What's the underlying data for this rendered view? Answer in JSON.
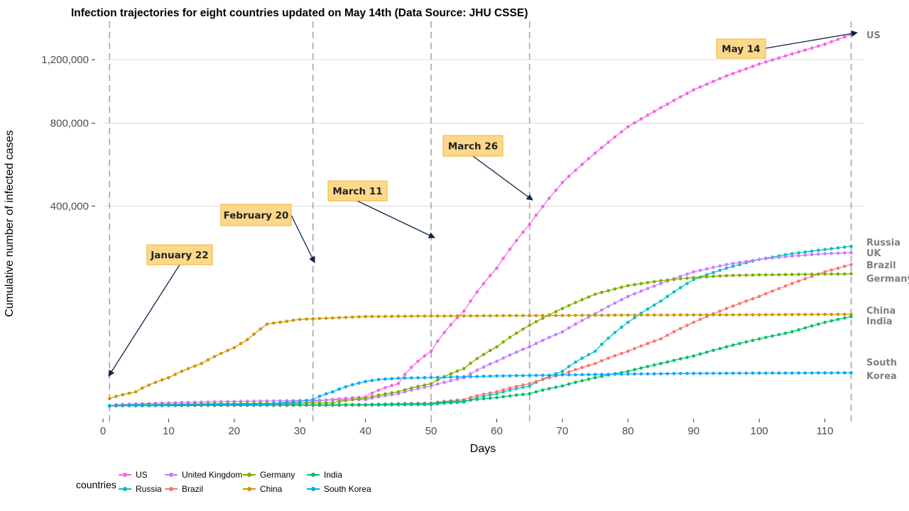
{
  "chart_data": {
    "type": "line",
    "title": "Infection trajectories for eight countries updated on May 14th (Data Source: JHU CSSE)",
    "xlabel": "Days",
    "ylabel": "Cumulative number of infected cases",
    "xlim": [
      0,
      116
    ],
    "x_ticks": [
      0,
      10,
      20,
      30,
      40,
      50,
      60,
      70,
      80,
      90,
      100,
      110
    ],
    "y_ticks": [
      400000,
      800000,
      1200000
    ],
    "y_tick_labels": [
      "400,000",
      "800,000",
      "1,200,000"
    ],
    "y_scale": "square-root (ticks printed at 400,000 / 800,000 / 1,200,000 only)",
    "grid": "horizontal major lines only",
    "legend_title": "countries",
    "legend_position": "bottom-left",
    "vertical_reference_lines_at_days": [
      1,
      32,
      50,
      65,
      114
    ],
    "annotations": [
      {
        "label": "January 22",
        "day": 1
      },
      {
        "label": "February 20",
        "day": 32
      },
      {
        "label": "March 11",
        "day": 50
      },
      {
        "label": "March 26",
        "day": 65
      },
      {
        "label": "May 14",
        "day": 114
      }
    ],
    "series": [
      {
        "name": "US",
        "end_label": "US",
        "color": "#f564e3",
        "points": [
          [
            1,
            1
          ],
          [
            30,
            50
          ],
          [
            40,
            800
          ],
          [
            45,
            5000
          ],
          [
            50,
            30000
          ],
          [
            55,
            90000
          ],
          [
            60,
            190000
          ],
          [
            65,
            330000
          ],
          [
            70,
            500000
          ],
          [
            75,
            640000
          ],
          [
            80,
            780000
          ],
          [
            85,
            890000
          ],
          [
            90,
            1000000
          ],
          [
            95,
            1090000
          ],
          [
            100,
            1170000
          ],
          [
            105,
            1240000
          ],
          [
            110,
            1310000
          ],
          [
            114,
            1380000
          ]
        ]
      },
      {
        "name": "Russia",
        "end_label": "Russia",
        "color": "#00bfc4",
        "points": [
          [
            1,
            0
          ],
          [
            40,
            5
          ],
          [
            50,
            20
          ],
          [
            55,
            150
          ],
          [
            60,
            1500
          ],
          [
            65,
            4000
          ],
          [
            70,
            12000
          ],
          [
            75,
            30000
          ],
          [
            80,
            70000
          ],
          [
            85,
            110000
          ],
          [
            90,
            160000
          ],
          [
            95,
            190000
          ],
          [
            100,
            215000
          ],
          [
            105,
            232000
          ],
          [
            110,
            245000
          ],
          [
            114,
            255000
          ]
        ]
      },
      {
        "name": "United Kingdom",
        "end_label": "UK",
        "color": "#c77cff",
        "points": [
          [
            1,
            2
          ],
          [
            40,
            400
          ],
          [
            45,
            1500
          ],
          [
            50,
            4000
          ],
          [
            55,
            8000
          ],
          [
            60,
            20000
          ],
          [
            65,
            35000
          ],
          [
            70,
            55000
          ],
          [
            75,
            85000
          ],
          [
            80,
            120000
          ],
          [
            85,
            150000
          ],
          [
            90,
            180000
          ],
          [
            95,
            200000
          ],
          [
            100,
            215000
          ],
          [
            105,
            225000
          ],
          [
            110,
            232000
          ],
          [
            114,
            235000
          ]
        ]
      },
      {
        "name": "Brazil",
        "end_label": "Brazil",
        "color": "#f8766d",
        "points": [
          [
            1,
            0
          ],
          [
            40,
            10
          ],
          [
            50,
            80
          ],
          [
            55,
            400
          ],
          [
            60,
            2000
          ],
          [
            65,
            5000
          ],
          [
            70,
            10000
          ],
          [
            75,
            18000
          ],
          [
            80,
            30000
          ],
          [
            85,
            45000
          ],
          [
            90,
            70000
          ],
          [
            95,
            95000
          ],
          [
            100,
            120000
          ],
          [
            105,
            150000
          ],
          [
            110,
            180000
          ],
          [
            114,
            200000
          ]
        ]
      },
      {
        "name": "Germany",
        "end_label": "Germany",
        "color": "#7cae00",
        "points": [
          [
            1,
            0
          ],
          [
            35,
            100
          ],
          [
            40,
            600
          ],
          [
            45,
            2000
          ],
          [
            50,
            5000
          ],
          [
            55,
            14000
          ],
          [
            60,
            35000
          ],
          [
            65,
            65000
          ],
          [
            70,
            95000
          ],
          [
            75,
            125000
          ],
          [
            80,
            145000
          ],
          [
            85,
            157000
          ],
          [
            90,
            165000
          ],
          [
            95,
            170000
          ],
          [
            100,
            172000
          ],
          [
            105,
            173000
          ],
          [
            110,
            174000
          ],
          [
            114,
            174500
          ]
        ]
      },
      {
        "name": "China",
        "end_label": "China",
        "color": "#cd9600",
        "points": [
          [
            1,
            550
          ],
          [
            5,
            2000
          ],
          [
            10,
            8000
          ],
          [
            15,
            18000
          ],
          [
            20,
            34000
          ],
          [
            22,
            44000
          ],
          [
            25,
            67000
          ],
          [
            30,
            75000
          ],
          [
            40,
            80000
          ],
          [
            50,
            81000
          ],
          [
            60,
            81500
          ],
          [
            70,
            82000
          ],
          [
            80,
            82700
          ],
          [
            90,
            83000
          ],
          [
            100,
            83300
          ],
          [
            110,
            84000
          ],
          [
            114,
            84000
          ]
        ]
      },
      {
        "name": "India",
        "end_label": "India",
        "color": "#00be67",
        "points": [
          [
            1,
            0
          ],
          [
            40,
            20
          ],
          [
            50,
            60
          ],
          [
            55,
            250
          ],
          [
            60,
            700
          ],
          [
            65,
            1500
          ],
          [
            70,
            4000
          ],
          [
            75,
            8000
          ],
          [
            80,
            12000
          ],
          [
            85,
            18000
          ],
          [
            90,
            25000
          ],
          [
            95,
            35000
          ],
          [
            100,
            45000
          ],
          [
            105,
            55000
          ],
          [
            110,
            70000
          ],
          [
            114,
            80000
          ]
        ]
      },
      {
        "name": "South Korea",
        "end_label": "South Korea",
        "end_label_lines": [
          "South",
          "Korea"
        ],
        "color": "#00a9ff",
        "points": [
          [
            1,
            1
          ],
          [
            25,
            30
          ],
          [
            30,
            200
          ],
          [
            32,
            400
          ],
          [
            35,
            2000
          ],
          [
            38,
            4500
          ],
          [
            40,
            6000
          ],
          [
            42,
            7000
          ],
          [
            45,
            7700
          ],
          [
            50,
            8100
          ],
          [
            55,
            8500
          ],
          [
            60,
            9000
          ],
          [
            65,
            9300
          ],
          [
            70,
            9650
          ],
          [
            80,
            10200
          ],
          [
            90,
            10600
          ],
          [
            100,
            10800
          ],
          [
            110,
            10950
          ],
          [
            114,
            11000
          ]
        ]
      }
    ]
  },
  "legend": {
    "title": "countries",
    "rows": [
      [
        "US",
        "United Kingdom",
        "Germany",
        "India"
      ],
      [
        "Russia",
        "Brazil",
        "China",
        "South Korea"
      ]
    ]
  }
}
